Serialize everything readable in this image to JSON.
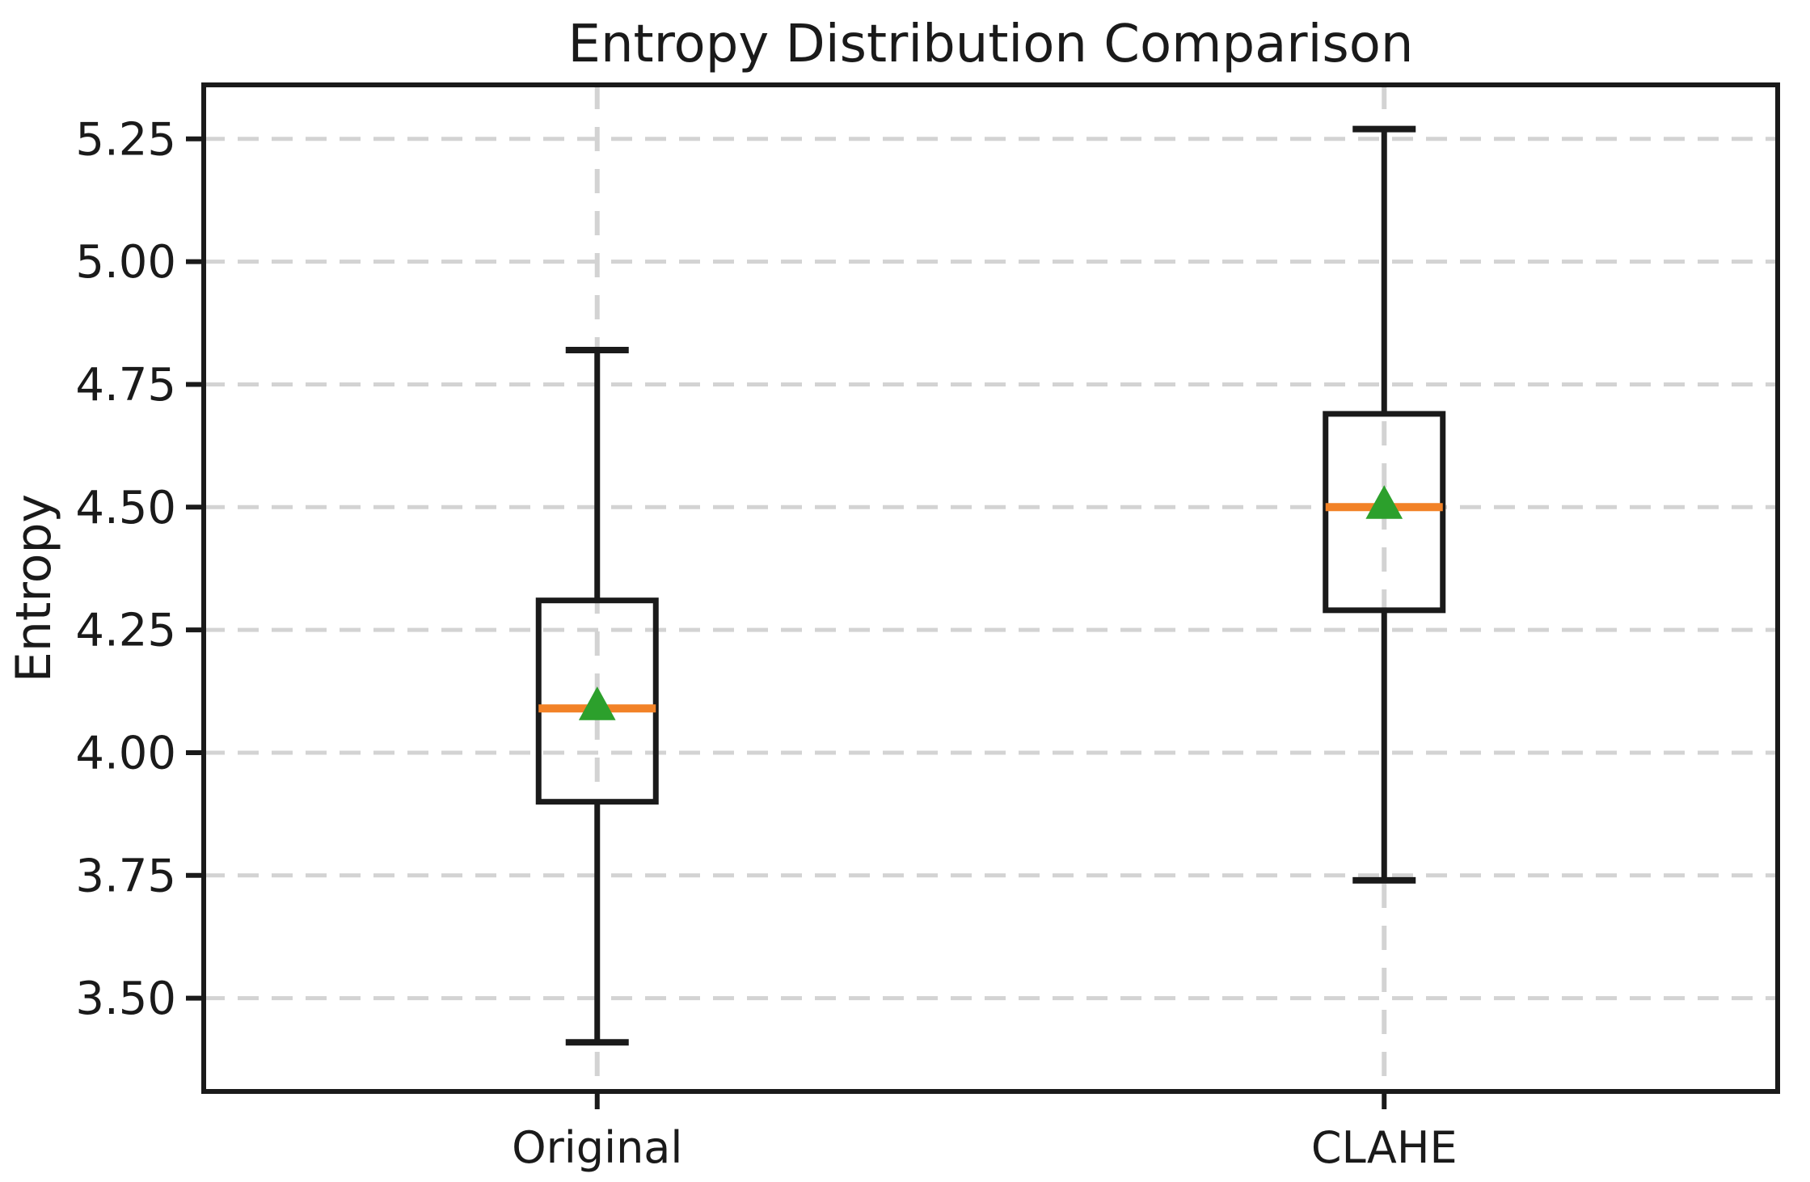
{
  "chart_data": {
    "type": "box",
    "title": "Entropy Distribution Comparison",
    "xlabel": "",
    "ylabel": "Entropy",
    "categories": [
      "Original",
      "CLAHE"
    ],
    "series": [
      {
        "label": "Original",
        "whisker_low": 3.41,
        "q1": 3.9,
        "median": 4.09,
        "mean": 4.1,
        "q3": 4.31,
        "whisker_high": 4.82
      },
      {
        "label": "CLAHE",
        "whisker_low": 3.74,
        "q1": 4.29,
        "median": 4.5,
        "mean": 4.51,
        "q3": 4.69,
        "whisker_high": 5.27
      }
    ],
    "y_ticks": [
      3.5,
      3.75,
      4.0,
      4.25,
      4.5,
      4.75,
      5.0,
      5.25
    ],
    "y_tick_decimals": 2,
    "ylim": [
      3.31,
      5.36
    ],
    "grid": "dashed horizontal and vertical at category centers",
    "legend": "none",
    "colors": {
      "line": "#1a1a1a",
      "median": "#f28227",
      "mean_marker": "#2ca02c",
      "grid": "#d3d3d3",
      "background": "#ffffff"
    }
  }
}
